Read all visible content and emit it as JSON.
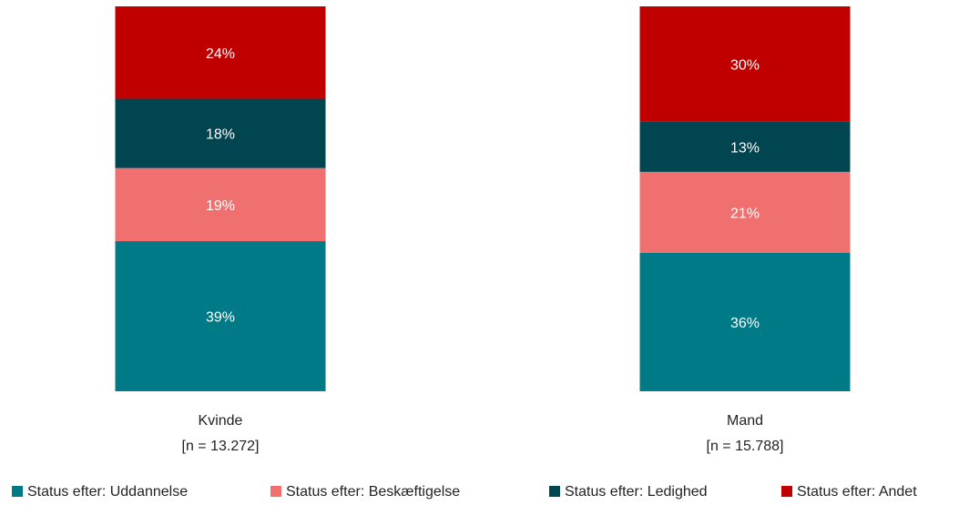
{
  "chart_data": {
    "type": "bar",
    "stacked": true,
    "normalized_percent": true,
    "categories": [
      "Kvinde",
      "Mand"
    ],
    "category_counts": [
      "[n = 13.272]",
      "[n = 15.788]"
    ],
    "series": [
      {
        "name": "Status efter: Uddannelse",
        "color": "#007A87",
        "values": [
          39,
          36
        ],
        "labels": [
          "39%",
          "36%"
        ]
      },
      {
        "name": "Status efter: Beskæftigelse",
        "color": "#F07070",
        "values": [
          19,
          21
        ],
        "labels": [
          "19%",
          "21%"
        ]
      },
      {
        "name": "Status efter: Ledighed",
        "color": "#004550",
        "values": [
          18,
          13
        ],
        "labels": [
          "18%",
          "13%"
        ]
      },
      {
        "name": "Status efter: Andet",
        "color": "#C00000",
        "values": [
          24,
          30
        ],
        "labels": [
          "24%",
          "30%"
        ]
      }
    ],
    "legend_position": "bottom",
    "grid": false
  }
}
